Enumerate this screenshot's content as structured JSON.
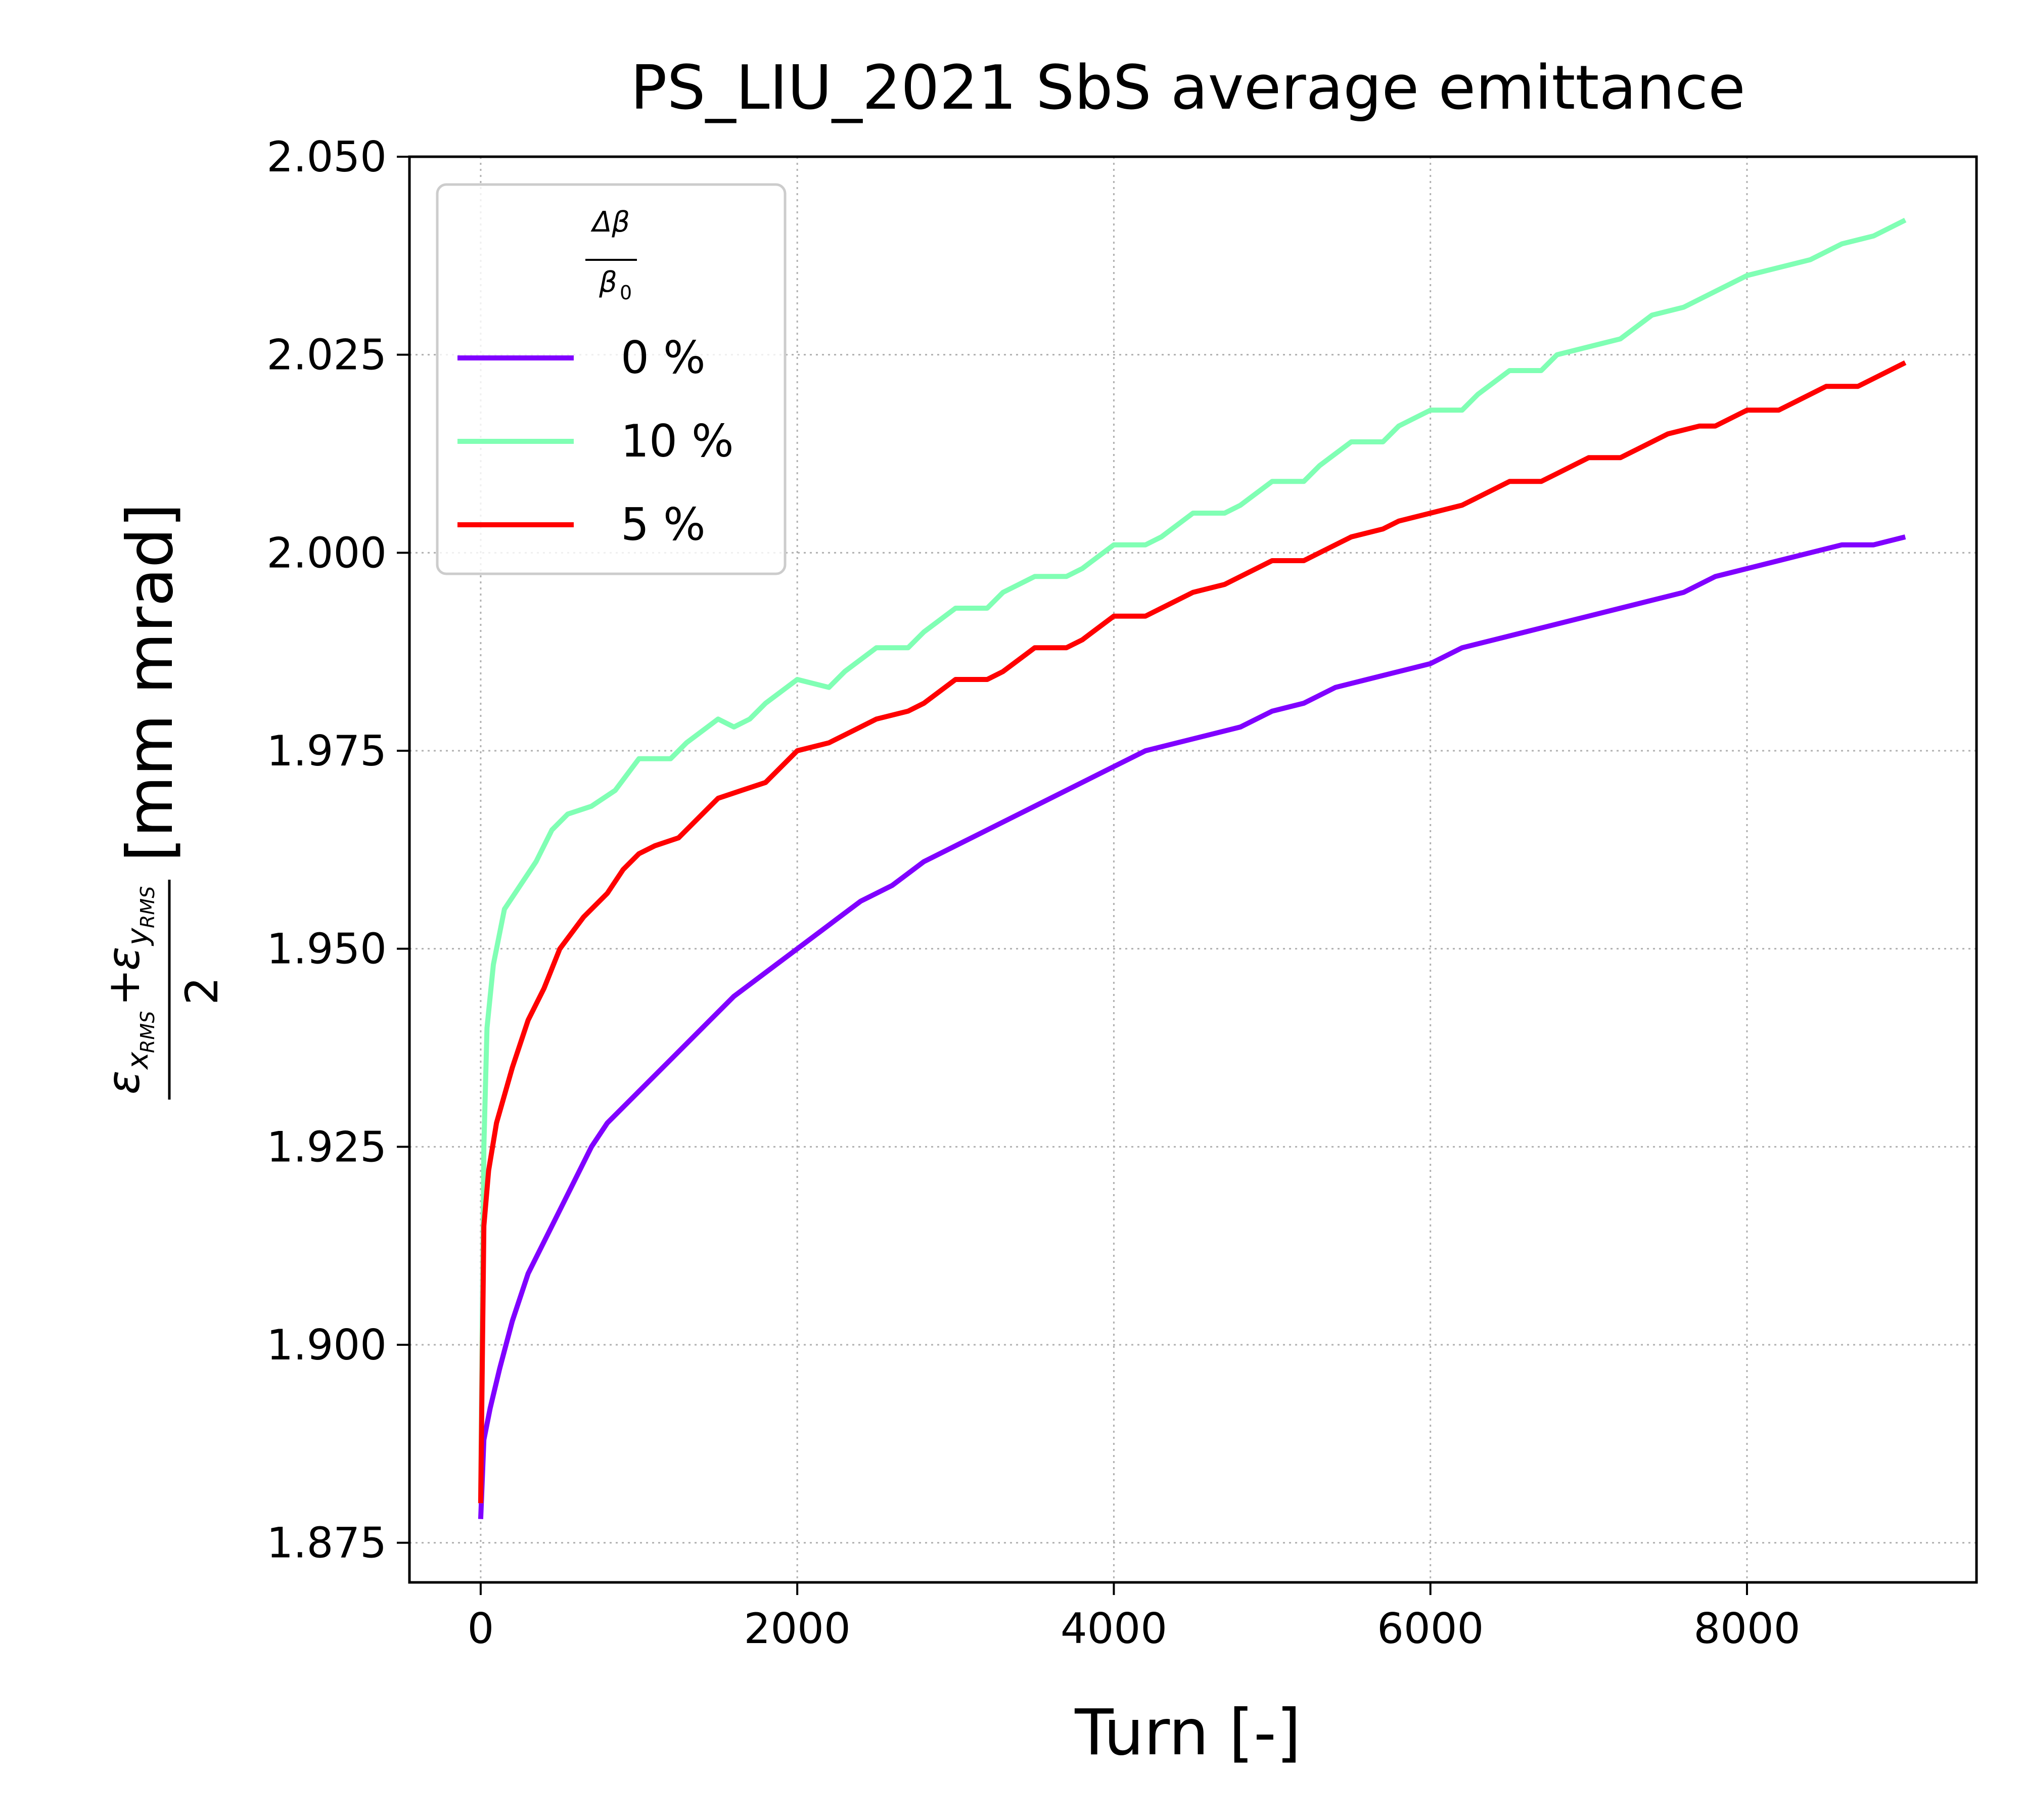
{
  "chart_data": {
    "type": "line",
    "title": "PS_LIU_2021 SbS average emittance",
    "xlabel": "Turn [-]",
    "ylabel": {
      "epsilon_symbol": "ε",
      "x_subscript": "x",
      "y_subscript": "y",
      "rms_subscript": "RMS",
      "plus": "+",
      "denominator": "2",
      "unit": "[mm mrad]"
    },
    "xlim": [
      -450,
      9450
    ],
    "ylim": [
      1.87,
      2.05
    ],
    "xticks": [
      0,
      2000,
      4000,
      6000,
      8000
    ],
    "xtick_labels": [
      "0",
      "2000",
      "4000",
      "6000",
      "8000"
    ],
    "yticks": [
      1.875,
      1.9,
      1.925,
      1.95,
      1.975,
      2.0,
      2.025,
      2.05
    ],
    "ytick_labels": [
      "1.875",
      "1.900",
      "1.925",
      "1.950",
      "1.975",
      "2.000",
      "2.025",
      "2.050"
    ],
    "grid": true,
    "legend": {
      "placement": "top-left",
      "title": {
        "numerator": "Δβ",
        "denominator": "β",
        "denominator_sub": "0"
      }
    },
    "series": [
      {
        "name": "0 %",
        "color": "#8000ff",
        "points": [
          [
            0,
            1.878
          ],
          [
            20,
            1.888
          ],
          [
            60,
            1.892
          ],
          [
            120,
            1.897
          ],
          [
            200,
            1.903
          ],
          [
            300,
            1.909
          ],
          [
            400,
            1.913
          ],
          [
            500,
            1.917
          ],
          [
            600,
            1.921
          ],
          [
            700,
            1.925
          ],
          [
            800,
            1.928
          ],
          [
            1000,
            1.932
          ],
          [
            1200,
            1.936
          ],
          [
            1400,
            1.94
          ],
          [
            1600,
            1.944
          ],
          [
            1800,
            1.947
          ],
          [
            2000,
            1.95
          ],
          [
            2200,
            1.953
          ],
          [
            2400,
            1.956
          ],
          [
            2600,
            1.958
          ],
          [
            2800,
            1.961
          ],
          [
            3000,
            1.963
          ],
          [
            3200,
            1.965
          ],
          [
            3400,
            1.967
          ],
          [
            3600,
            1.969
          ],
          [
            3800,
            1.971
          ],
          [
            4000,
            1.973
          ],
          [
            4200,
            1.975
          ],
          [
            4400,
            1.976
          ],
          [
            4600,
            1.977
          ],
          [
            4800,
            1.978
          ],
          [
            5000,
            1.98
          ],
          [
            5200,
            1.981
          ],
          [
            5400,
            1.983
          ],
          [
            5600,
            1.984
          ],
          [
            5800,
            1.985
          ],
          [
            6000,
            1.986
          ],
          [
            6200,
            1.988
          ],
          [
            6400,
            1.989
          ],
          [
            6600,
            1.99
          ],
          [
            6800,
            1.991
          ],
          [
            7000,
            1.992
          ],
          [
            7200,
            1.993
          ],
          [
            7400,
            1.994
          ],
          [
            7600,
            1.995
          ],
          [
            7800,
            1.997
          ],
          [
            8000,
            1.998
          ],
          [
            8200,
            1.999
          ],
          [
            8400,
            2.0
          ],
          [
            8600,
            2.001
          ],
          [
            8800,
            2.001
          ],
          [
            9000,
            2.002
          ]
        ]
      },
      {
        "name": "10 %",
        "color": "#80ffb4",
        "points": [
          [
            0,
            1.88
          ],
          [
            20,
            1.925
          ],
          [
            40,
            1.94
          ],
          [
            80,
            1.948
          ],
          [
            150,
            1.955
          ],
          [
            250,
            1.958
          ],
          [
            350,
            1.961
          ],
          [
            450,
            1.965
          ],
          [
            550,
            1.967
          ],
          [
            700,
            1.968
          ],
          [
            850,
            1.97
          ],
          [
            1000,
            1.974
          ],
          [
            1100,
            1.974
          ],
          [
            1200,
            1.974
          ],
          [
            1300,
            1.976
          ],
          [
            1500,
            1.979
          ],
          [
            1600,
            1.978
          ],
          [
            1700,
            1.979
          ],
          [
            1800,
            1.981
          ],
          [
            2000,
            1.984
          ],
          [
            2200,
            1.983
          ],
          [
            2300,
            1.985
          ],
          [
            2500,
            1.988
          ],
          [
            2700,
            1.988
          ],
          [
            2800,
            1.99
          ],
          [
            3000,
            1.993
          ],
          [
            3200,
            1.993
          ],
          [
            3300,
            1.995
          ],
          [
            3500,
            1.997
          ],
          [
            3700,
            1.997
          ],
          [
            3800,
            1.998
          ],
          [
            4000,
            2.001
          ],
          [
            4200,
            2.001
          ],
          [
            4300,
            2.002
          ],
          [
            4500,
            2.005
          ],
          [
            4700,
            2.005
          ],
          [
            4800,
            2.006
          ],
          [
            5000,
            2.009
          ],
          [
            5200,
            2.009
          ],
          [
            5300,
            2.011
          ],
          [
            5500,
            2.014
          ],
          [
            5700,
            2.014
          ],
          [
            5800,
            2.016
          ],
          [
            6000,
            2.018
          ],
          [
            6200,
            2.018
          ],
          [
            6300,
            2.02
          ],
          [
            6500,
            2.023
          ],
          [
            6700,
            2.023
          ],
          [
            6800,
            2.025
          ],
          [
            7000,
            2.026
          ],
          [
            7200,
            2.027
          ],
          [
            7400,
            2.03
          ],
          [
            7600,
            2.031
          ],
          [
            7800,
            2.033
          ],
          [
            8000,
            2.035
          ],
          [
            8200,
            2.036
          ],
          [
            8400,
            2.037
          ],
          [
            8600,
            2.039
          ],
          [
            8800,
            2.04
          ],
          [
            9000,
            2.042
          ]
        ]
      },
      {
        "name": "5 %",
        "color": "#ff0000",
        "points": [
          [
            0,
            1.88
          ],
          [
            20,
            1.915
          ],
          [
            50,
            1.922
          ],
          [
            100,
            1.928
          ],
          [
            200,
            1.935
          ],
          [
            300,
            1.941
          ],
          [
            400,
            1.945
          ],
          [
            500,
            1.95
          ],
          [
            650,
            1.954
          ],
          [
            800,
            1.957
          ],
          [
            900,
            1.96
          ],
          [
            1000,
            1.962
          ],
          [
            1100,
            1.963
          ],
          [
            1250,
            1.964
          ],
          [
            1350,
            1.966
          ],
          [
            1500,
            1.969
          ],
          [
            1650,
            1.97
          ],
          [
            1800,
            1.971
          ],
          [
            2000,
            1.975
          ],
          [
            2200,
            1.976
          ],
          [
            2300,
            1.977
          ],
          [
            2500,
            1.979
          ],
          [
            2700,
            1.98
          ],
          [
            2800,
            1.981
          ],
          [
            3000,
            1.984
          ],
          [
            3200,
            1.984
          ],
          [
            3300,
            1.985
          ],
          [
            3500,
            1.988
          ],
          [
            3700,
            1.988
          ],
          [
            3800,
            1.989
          ],
          [
            4000,
            1.992
          ],
          [
            4200,
            1.992
          ],
          [
            4300,
            1.993
          ],
          [
            4500,
            1.995
          ],
          [
            4700,
            1.996
          ],
          [
            4800,
            1.997
          ],
          [
            5000,
            1.999
          ],
          [
            5200,
            1.999
          ],
          [
            5300,
            2.0
          ],
          [
            5500,
            2.002
          ],
          [
            5700,
            2.003
          ],
          [
            5800,
            2.004
          ],
          [
            6000,
            2.005
          ],
          [
            6200,
            2.006
          ],
          [
            6300,
            2.007
          ],
          [
            6500,
            2.009
          ],
          [
            6700,
            2.009
          ],
          [
            6800,
            2.01
          ],
          [
            7000,
            2.012
          ],
          [
            7200,
            2.012
          ],
          [
            7300,
            2.013
          ],
          [
            7500,
            2.015
          ],
          [
            7700,
            2.016
          ],
          [
            7800,
            2.016
          ],
          [
            8000,
            2.018
          ],
          [
            8200,
            2.018
          ],
          [
            8300,
            2.019
          ],
          [
            8500,
            2.021
          ],
          [
            8700,
            2.021
          ],
          [
            8800,
            2.022
          ],
          [
            9000,
            2.024
          ]
        ]
      }
    ]
  }
}
